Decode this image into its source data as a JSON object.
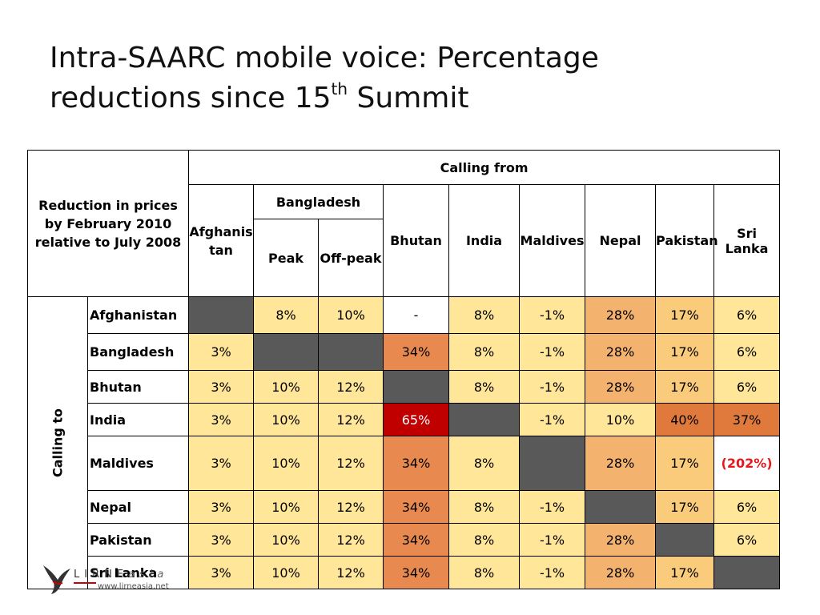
{
  "title": {
    "line1": "Intra-SAARC mobile voice: Percentage",
    "line2_pre": "reductions since 15",
    "line2_sup": "th",
    "line2_post": " Summit"
  },
  "table": {
    "corner_label": "Reduction in prices by February 2010 relative to July 2008",
    "calling_from": "Calling from",
    "calling_to": "Calling to",
    "col_headers": {
      "afghanistan": "Afghanistan",
      "bangladesh": "Bangladesh",
      "peak": "Peak",
      "offpeak": "Off-peak",
      "bhutan": "Bhutan",
      "india": "India",
      "maldives": "Maldives",
      "nepal": "Nepal",
      "pakistan": "Pakistan",
      "srilanka": "Sri Lanka"
    },
    "rows": [
      {
        "label": "Afghanistan",
        "cells": [
          [
            "",
            "g"
          ],
          [
            "8%",
            "y"
          ],
          [
            "10%",
            "y"
          ],
          [
            "-",
            "w"
          ],
          [
            "8%",
            "y"
          ],
          [
            "-1%",
            "y"
          ],
          [
            "28%",
            "m"
          ],
          [
            "17%",
            "l"
          ],
          [
            "6%",
            "y"
          ]
        ]
      },
      {
        "label": "Bangladesh",
        "cells": [
          [
            "3%",
            "y"
          ],
          [
            "",
            "g"
          ],
          [
            "",
            "g"
          ],
          [
            "34%",
            "o"
          ],
          [
            "8%",
            "y"
          ],
          [
            "-1%",
            "y"
          ],
          [
            "28%",
            "m"
          ],
          [
            "17%",
            "l"
          ],
          [
            "6%",
            "y"
          ]
        ]
      },
      {
        "label": "Bhutan",
        "cells": [
          [
            "3%",
            "y"
          ],
          [
            "10%",
            "y"
          ],
          [
            "12%",
            "y"
          ],
          [
            "",
            "g"
          ],
          [
            "8%",
            "y"
          ],
          [
            "-1%",
            "y"
          ],
          [
            "28%",
            "m"
          ],
          [
            "17%",
            "l"
          ],
          [
            "6%",
            "y"
          ]
        ]
      },
      {
        "label": "India",
        "cells": [
          [
            "3%",
            "y"
          ],
          [
            "10%",
            "y"
          ],
          [
            "12%",
            "y"
          ],
          [
            "65%",
            "r"
          ],
          [
            "",
            "g"
          ],
          [
            "-1%",
            "y"
          ],
          [
            "10%",
            "y"
          ],
          [
            "40%",
            "d"
          ],
          [
            "37%",
            "d"
          ]
        ]
      },
      {
        "label": "Maldives",
        "cells": [
          [
            "3%",
            "y"
          ],
          [
            "10%",
            "y"
          ],
          [
            "12%",
            "y"
          ],
          [
            "34%",
            "o"
          ],
          [
            "8%",
            "y"
          ],
          [
            "",
            "g"
          ],
          [
            "28%",
            "m"
          ],
          [
            "17%",
            "l"
          ],
          [
            "(202%)",
            "w"
          ]
        ]
      },
      {
        "label": "Nepal",
        "cells": [
          [
            "3%",
            "y"
          ],
          [
            "10%",
            "y"
          ],
          [
            "12%",
            "y"
          ],
          [
            "34%",
            "o"
          ],
          [
            "8%",
            "y"
          ],
          [
            "-1%",
            "y"
          ],
          [
            "",
            "g"
          ],
          [
            "17%",
            "l"
          ],
          [
            "6%",
            "y"
          ]
        ]
      },
      {
        "label": "Pakistan",
        "cells": [
          [
            "3%",
            "y"
          ],
          [
            "10%",
            "y"
          ],
          [
            "12%",
            "y"
          ],
          [
            "34%",
            "o"
          ],
          [
            "8%",
            "y"
          ],
          [
            "-1%",
            "y"
          ],
          [
            "28%",
            "m"
          ],
          [
            "",
            "g"
          ],
          [
            "6%",
            "y"
          ]
        ]
      },
      {
        "label": "Sri Lanka",
        "cells": [
          [
            "3%",
            "y"
          ],
          [
            "10%",
            "y"
          ],
          [
            "12%",
            "y"
          ],
          [
            "34%",
            "o"
          ],
          [
            "8%",
            "y"
          ],
          [
            "-1%",
            "y"
          ],
          [
            "28%",
            "m"
          ],
          [
            "17%",
            "l"
          ],
          [
            "",
            "g"
          ]
        ]
      }
    ]
  },
  "logo": {
    "brand_main": "LIRNE",
    "brand_sub": "asia",
    "url": "www.lirneasia.net"
  },
  "colors": {
    "yellow": "#FFE699",
    "light_orange": "#F9CB7A",
    "mid_orange": "#F4B26F",
    "orange": "#E88A4F",
    "dark_orange": "#E07A3C",
    "red": "#C00000",
    "grey": "#595959",
    "negative_text": "#e4191c"
  }
}
